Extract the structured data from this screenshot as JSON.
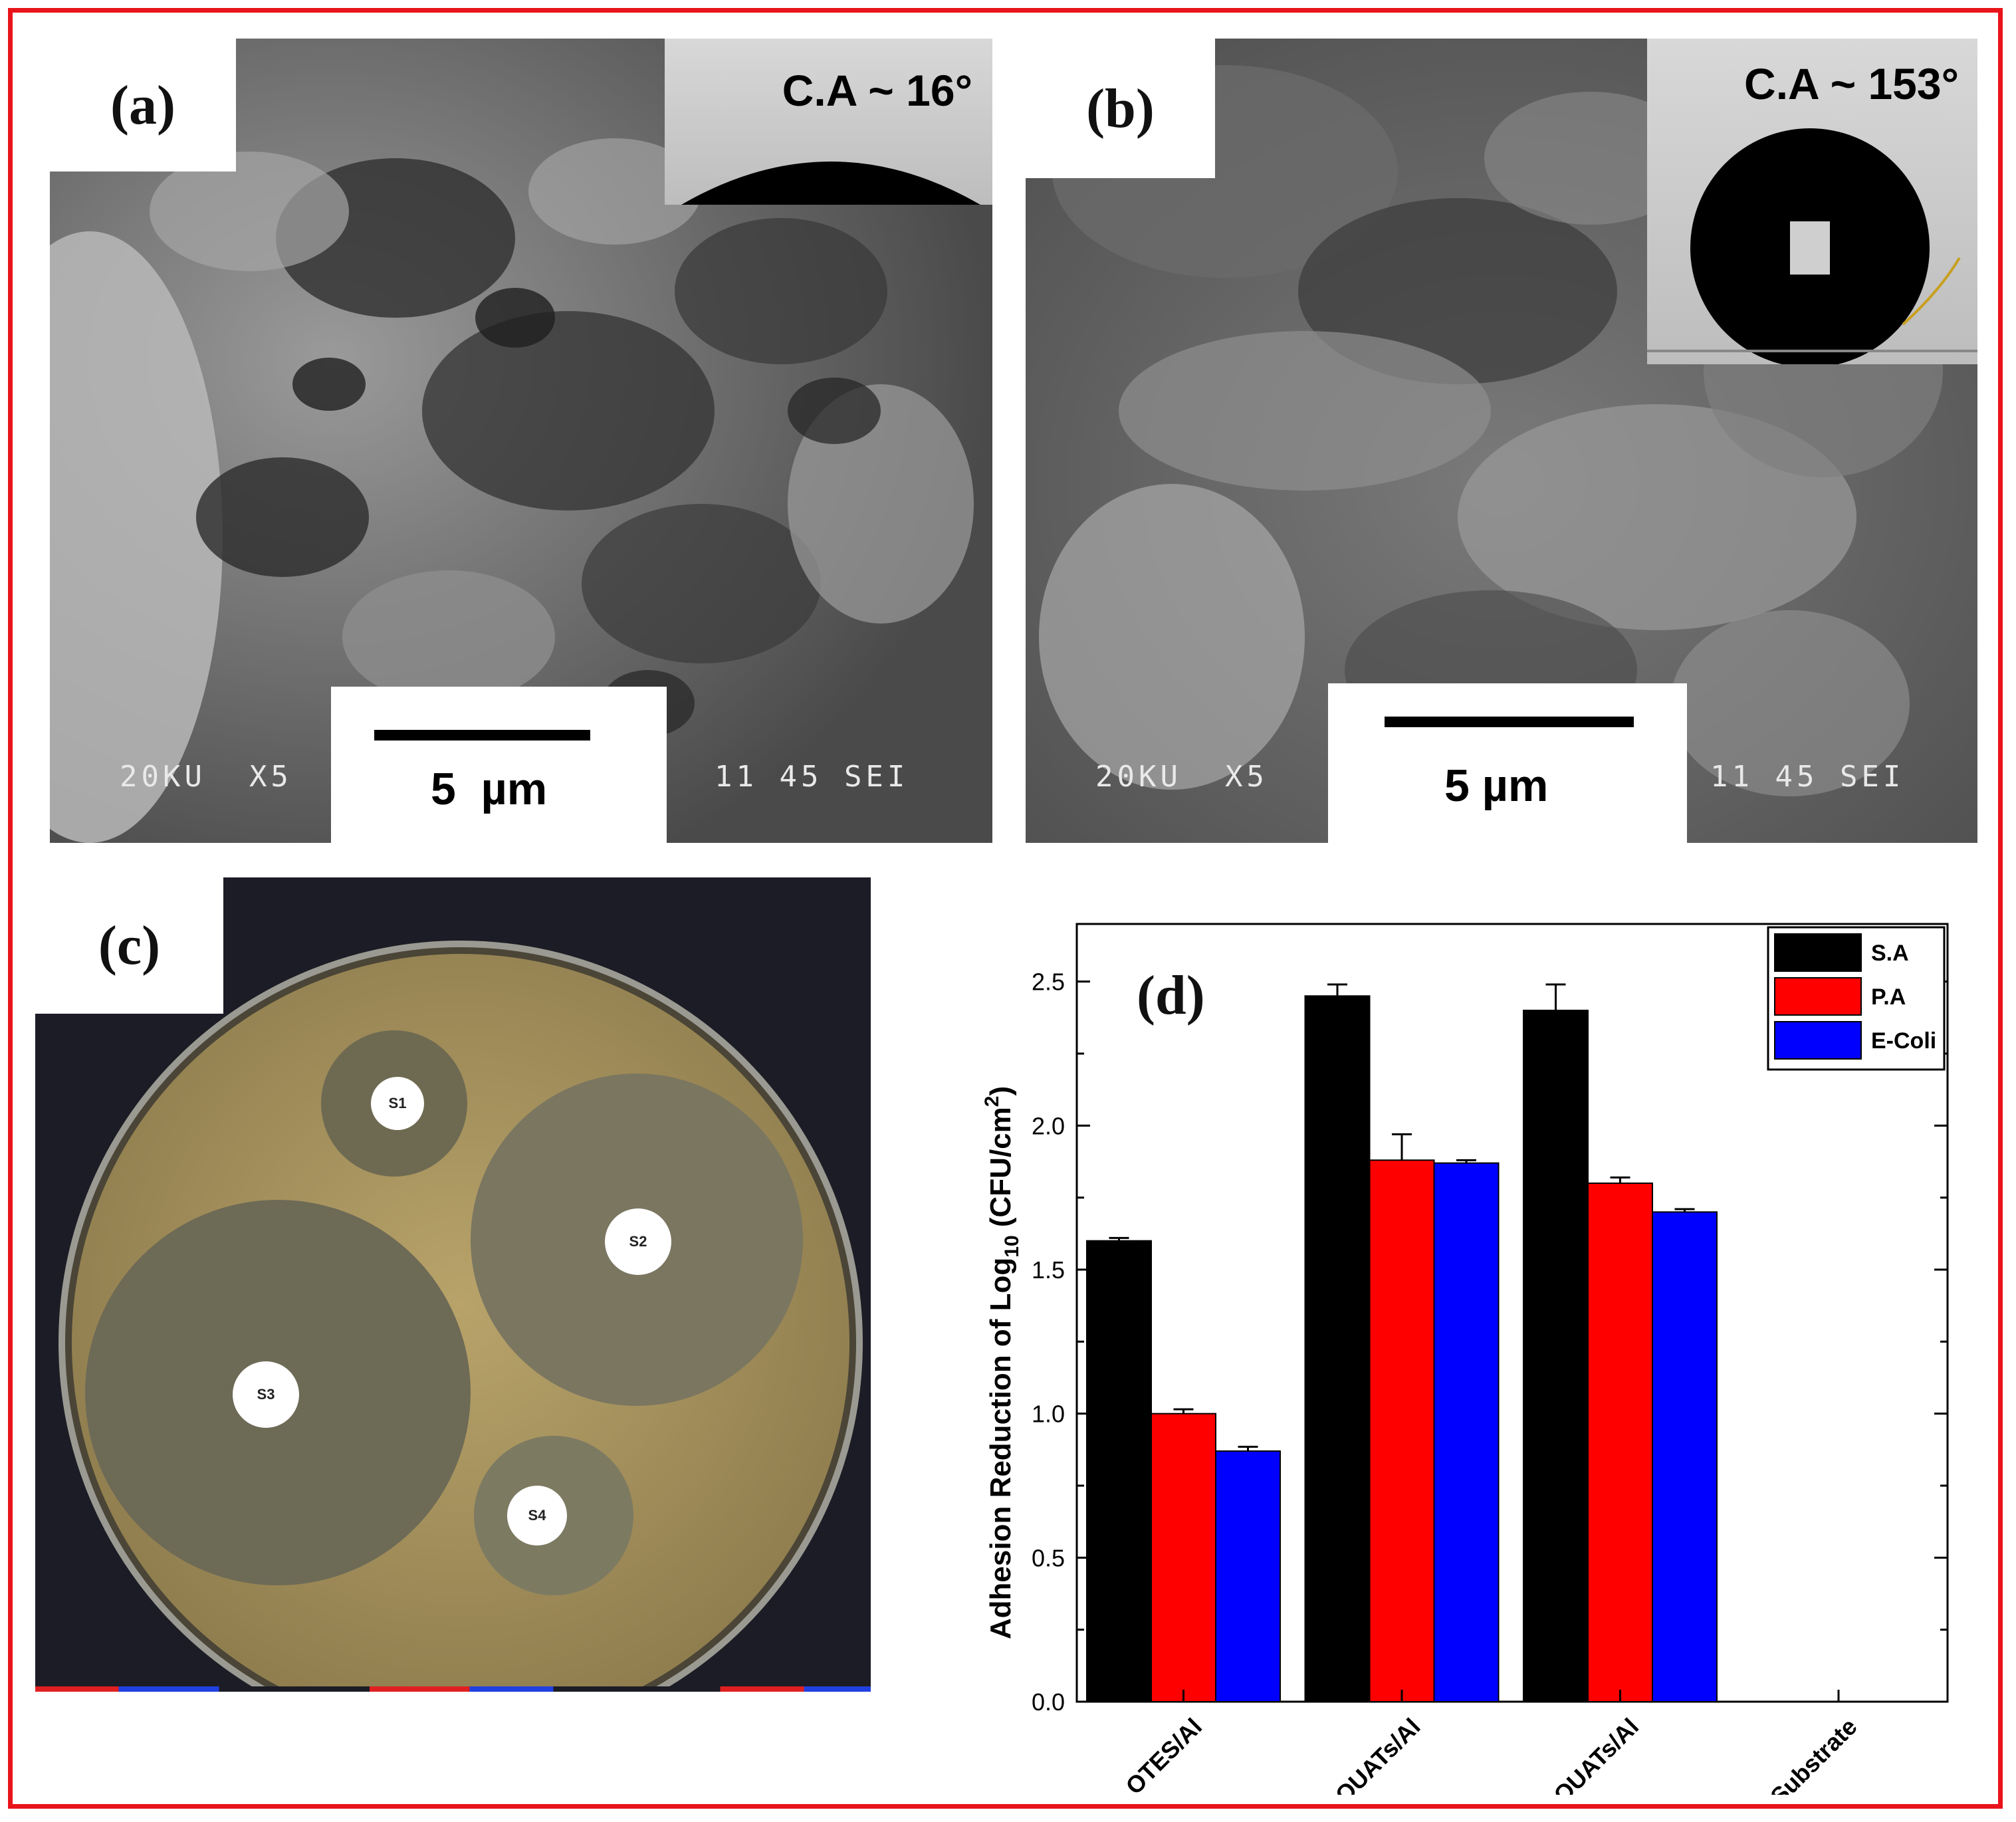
{
  "panels": {
    "a": {
      "label": "(a)",
      "contact_angle": "C.A ~ 16°",
      "scale": "5  µm",
      "meta_left": "20KU  X5",
      "meta_right": "11 45 SEI"
    },
    "b": {
      "label": "(b)",
      "contact_angle": "C.A ~ 153°",
      "scale": "5 µm",
      "meta_left": "20KU  X5",
      "meta_right": "11 45 SEI"
    },
    "c": {
      "label": "(c)",
      "discs": [
        "S1",
        "S2",
        "S3",
        "S4"
      ]
    },
    "d": {
      "label": "(d)"
    }
  },
  "chart_data": {
    "type": "bar",
    "categories": [
      "OTES/Al",
      "OTES-QUATs/Al",
      "QUATs/Al",
      "Al Substrate"
    ],
    "series": [
      {
        "name": "S.A",
        "color": "#000000",
        "values": [
          1.6,
          2.45,
          2.4,
          0
        ],
        "errors": [
          0.01,
          0.04,
          0.09,
          0
        ]
      },
      {
        "name": "P.A",
        "color": "#ff0000",
        "values": [
          1.0,
          1.88,
          1.8,
          0
        ],
        "errors": [
          0.015,
          0.09,
          0.02,
          0
        ]
      },
      {
        "name": "E-Coli",
        "color": "#0000ff",
        "values": [
          0.87,
          1.87,
          1.7,
          0
        ],
        "errors": [
          0.015,
          0.01,
          0.01,
          0
        ]
      }
    ],
    "ylabel_main": "Adhesion Reduction of Log",
    "ylabel_sub": "10",
    "ylabel_unit_pre": " (CFU/cm",
    "ylabel_sup": "2",
    "ylabel_unit_post": ")",
    "ylim": [
      0,
      2.7
    ],
    "yticks": [
      "0.0",
      "0.5",
      "1.0",
      "1.5",
      "2.0",
      "2.5"
    ],
    "legend_position": "top-right"
  }
}
